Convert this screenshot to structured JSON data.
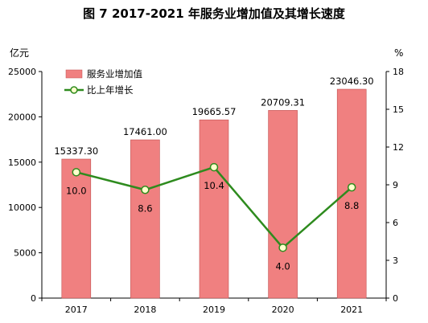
{
  "chart_data": {
    "type": "bar",
    "title": "图 7   2017-2021 年服务业增加值及其增长速度",
    "categories": [
      "2017",
      "2018",
      "2019",
      "2020",
      "2021"
    ],
    "left_axis": {
      "unit": "亿元",
      "ylim": [
        0,
        25000
      ],
      "ticks": [
        "0",
        "5000",
        "10000",
        "15000",
        "20000",
        "25000"
      ]
    },
    "right_axis": {
      "unit": "%",
      "ylim": [
        0,
        18
      ],
      "ticks": [
        "0",
        "3",
        "6",
        "9",
        "12",
        "15",
        "18"
      ]
    },
    "series": [
      {
        "name": "服务业增加值",
        "kind": "bar",
        "axis": "left",
        "color": "#f08080",
        "values": [
          15337.3,
          17461.0,
          19665.57,
          20709.31,
          23046.3
        ],
        "labels": [
          "15337.30",
          "17461.00",
          "19665.57",
          "20709.31",
          "23046.30"
        ]
      },
      {
        "name": "比上年增长",
        "kind": "line",
        "axis": "right",
        "color": "#2e8b1e",
        "values": [
          10.0,
          8.6,
          10.4,
          4.0,
          8.8
        ],
        "labels": [
          "10.0",
          "8.6",
          "10.4",
          "4.0",
          "8.8"
        ]
      }
    ],
    "grid": false,
    "legend_position": "top-left"
  }
}
